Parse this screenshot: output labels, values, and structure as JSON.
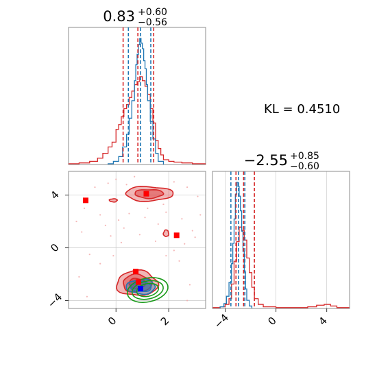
{
  "chart_data": [
    {
      "type": "histogram",
      "panel": "top-left",
      "title": {
        "value": "0.83",
        "plus": "+0.60",
        "minus": "−0.56"
      },
      "x_range": [
        -1.8,
        3.4
      ],
      "colors": {
        "red": "#d62728",
        "blue": "#1f77b4"
      },
      "red_quantiles": [
        0.27,
        0.83,
        1.43
      ],
      "blue_quantiles": [
        0.47,
        0.93,
        1.32
      ],
      "series": [
        {
          "color": "red",
          "bin_edges": [
            -1.8,
            -1.4,
            -1.0,
            -0.7,
            -0.5,
            -0.3,
            -0.15,
            0.0,
            0.1,
            0.2,
            0.3,
            0.4,
            0.5,
            0.6,
            0.7,
            0.8,
            0.9,
            1.0,
            1.1,
            1.2,
            1.3,
            1.4,
            1.5,
            1.6,
            1.7,
            1.8,
            2.0,
            2.2,
            2.5,
            2.9,
            3.4
          ],
          "counts": [
            1,
            2,
            4,
            8,
            14,
            22,
            28,
            44,
            50,
            60,
            70,
            75,
            84,
            92,
            100,
            104,
            110,
            105,
            98,
            88,
            70,
            52,
            30,
            20,
            12,
            6,
            4,
            3,
            2,
            1
          ]
        },
        {
          "color": "blue",
          "bin_edges": [
            -0.3,
            -0.1,
            0.1,
            0.25,
            0.4,
            0.5,
            0.6,
            0.7,
            0.75,
            0.8,
            0.85,
            0.9,
            0.95,
            1.0,
            1.05,
            1.1,
            1.15,
            1.2,
            1.3,
            1.4,
            1.5,
            1.6,
            1.8
          ],
          "counts": [
            1,
            4,
            10,
            22,
            38,
            58,
            80,
            105,
            125,
            138,
            150,
            158,
            152,
            145,
            130,
            120,
            100,
            80,
            54,
            32,
            14,
            4
          ]
        }
      ]
    },
    {
      "type": "histogram",
      "panel": "bottom-right",
      "title": {
        "value": "−2.55",
        "plus": "+0.85",
        "minus": "−0.60"
      },
      "x_range": [
        -5,
        5.8
      ],
      "ticks": [
        -4,
        0,
        4
      ],
      "tick_labels": [
        "−4",
        "0",
        "4"
      ],
      "red_quantiles": [
        -3.15,
        -2.55,
        -1.7
      ],
      "blue_quantiles": [
        -3.55,
        -2.95,
        -2.45
      ],
      "series": [
        {
          "color": "red",
          "bin_edges": [
            -5,
            -4.4,
            -4.0,
            -3.7,
            -3.5,
            -3.3,
            -3.1,
            -2.9,
            -2.7,
            -2.5,
            -2.3,
            -2.1,
            -1.9,
            -1.7,
            -1.4,
            -1.0,
            -0.5,
            0.0,
            0.5,
            1.5,
            2.5,
            3.2,
            3.8,
            4.3,
            4.8,
            5.8
          ],
          "counts": [
            1,
            2,
            5,
            12,
            30,
            58,
            82,
            100,
            96,
            84,
            62,
            44,
            26,
            12,
            5,
            2,
            2,
            1,
            1,
            1,
            2,
            4,
            5,
            3,
            1
          ]
        },
        {
          "color": "blue",
          "bin_edges": [
            -4.4,
            -4.1,
            -3.9,
            -3.7,
            -3.5,
            -3.4,
            -3.3,
            -3.2,
            -3.1,
            -3.0,
            -2.9,
            -2.8,
            -2.7,
            -2.6,
            -2.5,
            -2.4,
            -2.3,
            -2.1,
            -1.9
          ],
          "counts": [
            2,
            6,
            15,
            32,
            55,
            80,
            110,
            140,
            155,
            150,
            138,
            120,
            95,
            70,
            45,
            24,
            10,
            3
          ]
        }
      ]
    },
    {
      "type": "contour",
      "panel": "bottom-left",
      "x_range": [
        -1.8,
        3.4
      ],
      "y_range": [
        -4.6,
        5.8
      ],
      "x_ticks": [
        0,
        2
      ],
      "x_tick_labels": [
        "0",
        "2"
      ],
      "y_ticks": [
        -4,
        0,
        4
      ],
      "y_tick_labels": [
        "−4",
        "0",
        "4"
      ],
      "colors": {
        "red": "#d62728",
        "blue": "#1f77b4",
        "green": "#1a9a1a"
      },
      "red_modes": [
        {
          "x": 0.8,
          "y": -2.7,
          "sx": 0.78,
          "sy": 0.95,
          "levels": [
            1.0,
            0.7,
            0.4
          ]
        },
        {
          "x": 1.25,
          "y": 4.1,
          "sx": 0.9,
          "sy": 0.55,
          "levels": [
            1.0,
            0.6
          ]
        },
        {
          "x": -0.1,
          "y": 3.6,
          "sx": 0.15,
          "sy": 0.12,
          "levels": [
            1.0
          ]
        },
        {
          "x": 1.9,
          "y": 1.1,
          "sx": 0.1,
          "sy": 0.25,
          "levels": [
            1.0
          ]
        }
      ],
      "blue_contours": [
        {
          "x": 0.95,
          "y": -2.95,
          "sx": 0.55,
          "sy": 0.55,
          "fill": 0.35
        },
        {
          "x": 0.95,
          "y": -2.95,
          "sx": 0.4,
          "sy": 0.38,
          "fill": 0.5
        }
      ],
      "green_contours": [
        {
          "x": 1.2,
          "y": -3.2,
          "sx": 0.78,
          "sy": 0.9
        },
        {
          "x": 1.2,
          "y": -3.2,
          "sx": 0.6,
          "sy": 0.68
        },
        {
          "x": 1.2,
          "y": -3.2,
          "sx": 0.42,
          "sy": 0.48
        }
      ],
      "red_markers": [
        {
          "x": -1.15,
          "y": 3.6
        },
        {
          "x": 1.15,
          "y": 4.1
        },
        {
          "x": 2.3,
          "y": 0.95
        },
        {
          "x": 0.75,
          "y": -1.8
        },
        {
          "x": 0.85,
          "y": -2.6
        }
      ],
      "blue_marker": {
        "x": 0.93,
        "y": -3.1
      },
      "scatter_points": [
        {
          "x": -1.5,
          "y": 2.0
        },
        {
          "x": -1.2,
          "y": 3.0
        },
        {
          "x": -0.8,
          "y": 4.6
        },
        {
          "x": -0.6,
          "y": 2.5
        },
        {
          "x": -0.4,
          "y": 1.7
        },
        {
          "x": -0.3,
          "y": 4.9
        },
        {
          "x": 0.1,
          "y": 2.1
        },
        {
          "x": 0.3,
          "y": 1.5
        },
        {
          "x": 0.5,
          "y": 2.6
        },
        {
          "x": 0.7,
          "y": 5.4
        },
        {
          "x": 1.1,
          "y": 2.3
        },
        {
          "x": 1.6,
          "y": 1.8
        },
        {
          "x": 1.9,
          "y": 2.7
        },
        {
          "x": 2.2,
          "y": 5.0
        },
        {
          "x": 2.5,
          "y": 2.2
        },
        {
          "x": 2.7,
          "y": 4.6
        },
        {
          "x": 2.9,
          "y": 1.3
        },
        {
          "x": 3.0,
          "y": 0.8
        },
        {
          "x": 3.1,
          "y": 3.9
        },
        {
          "x": 2.6,
          "y": 0.3
        },
        {
          "x": 2.2,
          "y": -0.2
        },
        {
          "x": 1.5,
          "y": 0.5
        },
        {
          "x": 0.9,
          "y": 1.0
        },
        {
          "x": -0.2,
          "y": 0.9
        },
        {
          "x": -1.3,
          "y": 1.2
        },
        {
          "x": -1.0,
          "y": -0.5
        },
        {
          "x": 0.2,
          "y": 0.4
        },
        {
          "x": 1.2,
          "y": 3.0
        },
        {
          "x": 0.0,
          "y": 5.2
        },
        {
          "x": -0.6,
          "y": -1.2
        },
        {
          "x": 2.4,
          "y": -1.0
        },
        {
          "x": -1.4,
          "y": -2.2
        },
        {
          "x": -1.1,
          "y": -3.7
        },
        {
          "x": 2.8,
          "y": -2.8
        },
        {
          "x": 2.7,
          "y": -4.0
        },
        {
          "x": 1.8,
          "y": 3.3
        },
        {
          "x": 0.4,
          "y": 4.8
        },
        {
          "x": -0.1,
          "y": -0.6
        },
        {
          "x": 1.9,
          "y": -0.6
        },
        {
          "x": 3.2,
          "y": 2.5
        }
      ]
    }
  ],
  "annotation": {
    "text": "KL = 0.4510"
  }
}
